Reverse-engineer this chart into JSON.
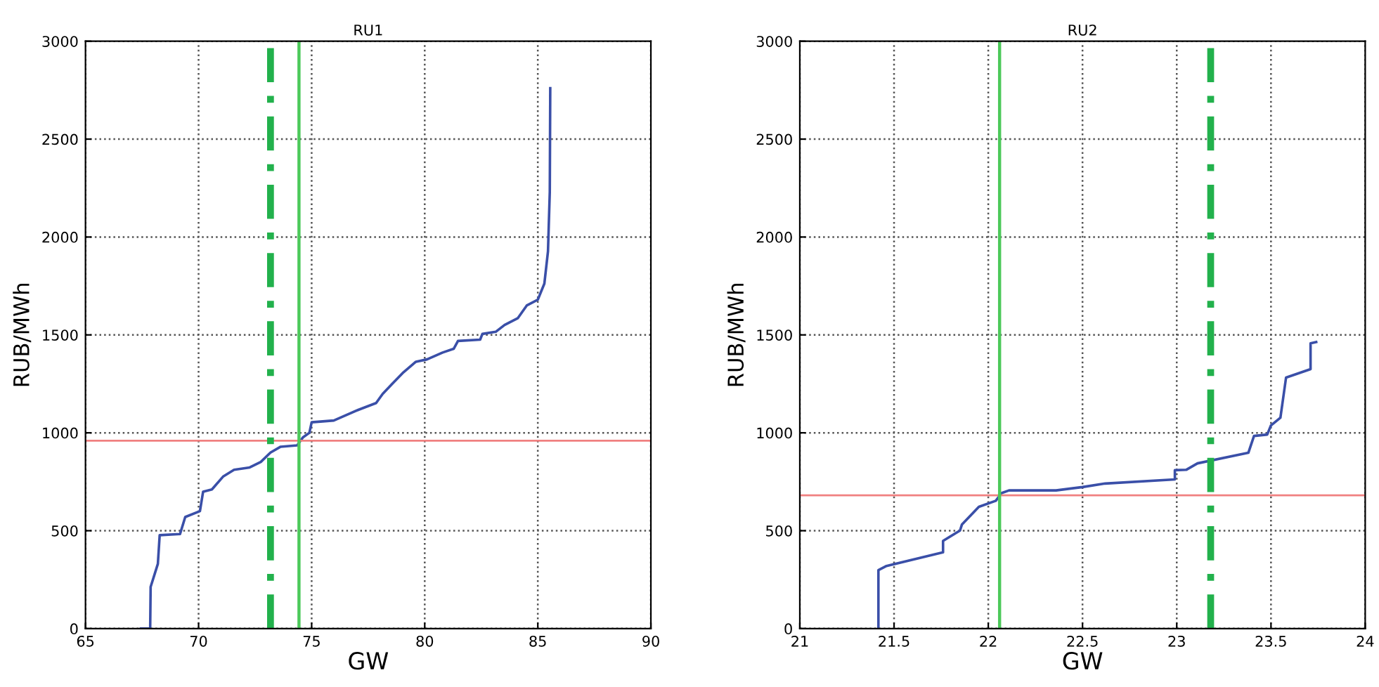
{
  "chart_data": [
    {
      "type": "line",
      "title": "RU1",
      "xlabel": "GW",
      "ylabel": "RUB/MWh",
      "xlim": [
        65,
        90
      ],
      "xticks": [
        65,
        70,
        75,
        80,
        85,
        90
      ],
      "ylim": [
        0,
        3000
      ],
      "yticks": [
        0,
        500,
        1000,
        1500,
        2000,
        2500,
        3000
      ],
      "grid": true,
      "legend": false,
      "series": [
        {
          "color": "#3a4fa8",
          "x": [
            67.45,
            67.86,
            67.88,
            68.2,
            68.28,
            69.18,
            69.41,
            70.06,
            70.2,
            70.59,
            71.08,
            71.57,
            72.26,
            72.75,
            73.18,
            73.63,
            74.36,
            74.61,
            74.9,
            75.0,
            75.98,
            77.06,
            77.85,
            78.14,
            78.53,
            79.02,
            79.61,
            80.1,
            80.79,
            81.28,
            81.47,
            82.45,
            82.55,
            83.14,
            83.53,
            84.12,
            84.51,
            85.0,
            85.29,
            85.45,
            85.53,
            85.55
          ],
          "values": [
            0,
            0,
            213,
            331,
            477,
            483,
            570,
            600,
            699,
            711,
            776,
            811,
            823,
            851,
            899,
            929,
            936,
            976,
            1000,
            1054,
            1063,
            1117,
            1152,
            1199,
            1246,
            1305,
            1363,
            1375,
            1410,
            1429,
            1469,
            1476,
            1505,
            1516,
            1551,
            1586,
            1650,
            1680,
            1762,
            1927,
            2232,
            2760
          ]
        }
      ],
      "ref_lines": [
        {
          "axis": "y",
          "value": 960,
          "color": "#f08080",
          "line_style": "solid"
        },
        {
          "axis": "x",
          "value": 73.18,
          "color": "#22b14c",
          "line_style": "dashed"
        },
        {
          "axis": "x",
          "value": 74.44,
          "color": "#4cc95a",
          "line_style": "solid"
        }
      ]
    },
    {
      "type": "line",
      "title": "RU2",
      "xlabel": "GW",
      "ylabel": "RUB/MWh",
      "xlim": [
        21,
        24
      ],
      "xticks": [
        21,
        21.5,
        22,
        22.5,
        23,
        23.5,
        24
      ],
      "ylim": [
        0,
        3000
      ],
      "yticks": [
        0,
        500,
        1000,
        1500,
        2000,
        2500,
        3000
      ],
      "grid": true,
      "legend": false,
      "series": [
        {
          "color": "#3a4fa8",
          "x": [
            21.417,
            21.417,
            21.46,
            21.76,
            21.76,
            21.85,
            21.86,
            21.95,
            22.04,
            22.07,
            22.11,
            22.36,
            22.5,
            22.62,
            22.99,
            22.99,
            23.05,
            23.11,
            23.38,
            23.41,
            23.48,
            23.5,
            23.55,
            23.58,
            23.71,
            23.71,
            23.74
          ],
          "values": [
            0,
            299,
            320,
            390,
            448,
            501,
            531,
            622,
            653,
            692,
            706,
            706,
            723,
            741,
            762,
            809,
            811,
            844,
            898,
            984,
            991,
            1038,
            1077,
            1282,
            1325,
            1457,
            1464
          ]
        }
      ],
      "ref_lines": [
        {
          "axis": "y",
          "value": 681,
          "color": "#f08080",
          "line_style": "solid"
        },
        {
          "axis": "x",
          "value": 22.06,
          "color": "#4cc95a",
          "line_style": "solid"
        },
        {
          "axis": "x",
          "value": 23.18,
          "color": "#22b14c",
          "line_style": "dashed"
        }
      ]
    }
  ]
}
